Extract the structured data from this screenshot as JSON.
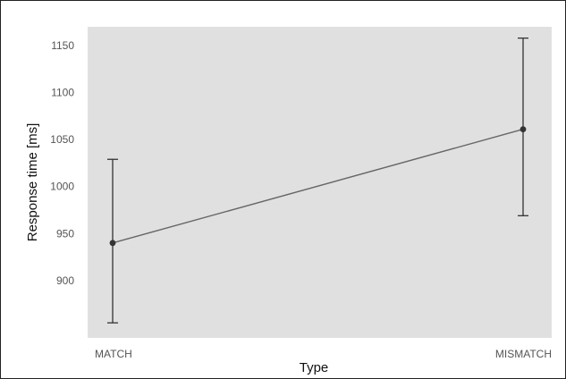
{
  "chart_data": {
    "type": "line",
    "title": "",
    "xlabel": "Type",
    "ylabel": "Response time [ms]",
    "categories": [
      "MATCH",
      "MISMATCH"
    ],
    "series": [
      {
        "values": [
          940,
          1061
        ],
        "error_low": [
          855,
          969
        ],
        "error_high": [
          1029,
          1158
        ]
      }
    ],
    "yticks": [
      900,
      950,
      1000,
      1050,
      1100,
      1150
    ],
    "ytick_labels": [
      "900",
      "950",
      "1000",
      "1050",
      "1100",
      "1150"
    ],
    "ylim": [
      839,
      1170
    ],
    "grid": false,
    "legend": "none",
    "colors": {
      "panel": "#e0e0e0",
      "line": "#666666",
      "point": "#333333",
      "errorbar": "#333333"
    }
  }
}
